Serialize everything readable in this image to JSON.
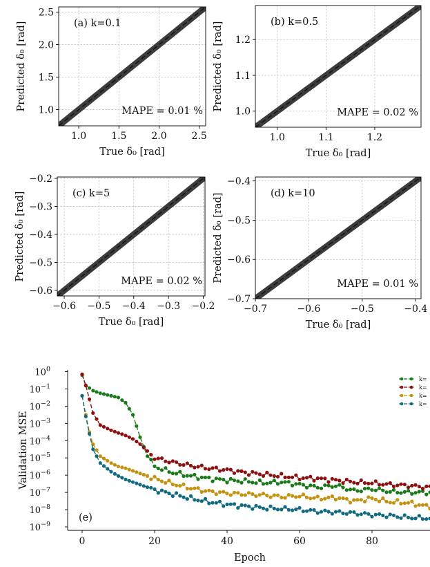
{
  "chart_data": [
    {
      "panel": "a",
      "type": "scatter",
      "label": "(a) k=0.1",
      "annotation": "MAPE = 0.01 %",
      "xlabel": "True δ₀ [rad]",
      "ylabel": "Predicted δ₀ [rad]",
      "xlim": [
        0.75,
        2.58
      ],
      "ylim": [
        0.75,
        2.58
      ],
      "xticks": [
        1.0,
        1.5,
        2.0,
        2.5
      ],
      "yticks": [
        1.0,
        1.5,
        2.0,
        2.5
      ],
      "xtick_labels": [
        "1.0",
        "1.5",
        "2.0",
        "2.5"
      ],
      "ytick_labels": [
        "1.0",
        "1.5",
        "2.0",
        "2.5"
      ],
      "grid": true,
      "series": [
        {
          "x": [
            0.75,
            2.58
          ],
          "y": [
            0.75,
            2.58
          ]
        }
      ]
    },
    {
      "panel": "b",
      "type": "scatter",
      "label": "(b) k=0.5",
      "annotation": "MAPE = 0.02 %",
      "xlabel": "True δ₀ [rad]",
      "ylabel": "Predicted δ₀ [rad]",
      "xlim": [
        0.955,
        1.295
      ],
      "ylim": [
        0.955,
        1.295
      ],
      "xticks": [
        1.0,
        1.1,
        1.2
      ],
      "yticks": [
        1.0,
        1.1,
        1.2
      ],
      "xtick_labels": [
        "1.0",
        "1.1",
        "1.2"
      ],
      "ytick_labels": [
        "1.0",
        "1.1",
        "1.2"
      ],
      "grid": true,
      "series": [
        {
          "x": [
            0.955,
            1.295
          ],
          "y": [
            0.955,
            1.295
          ]
        }
      ]
    },
    {
      "panel": "c",
      "type": "scatter",
      "label": "(c) k=5",
      "annotation": "MAPE = 0.02 %",
      "xlabel": "True δ₀ [rad]",
      "ylabel": "Predicted δ₀ [rad]",
      "xlim": [
        -0.62,
        -0.195
      ],
      "ylim": [
        -0.62,
        -0.195
      ],
      "xticks": [
        -0.6,
        -0.5,
        -0.4,
        -0.3,
        -0.2
      ],
      "yticks": [
        -0.6,
        -0.5,
        -0.4,
        -0.3,
        -0.2
      ],
      "xtick_labels": [
        "−0.6",
        "−0.5",
        "−0.4",
        "−0.3",
        "−0.2"
      ],
      "ytick_labels": [
        "−0.6",
        "−0.5",
        "−0.4",
        "−0.3",
        "−0.2"
      ],
      "grid": true,
      "series": [
        {
          "x": [
            -0.62,
            -0.195
          ],
          "y": [
            -0.62,
            -0.195
          ]
        }
      ]
    },
    {
      "panel": "d",
      "type": "scatter",
      "label": "(d) k=10",
      "annotation": "MAPE = 0.01 %",
      "xlabel": "True δ₀ [rad]",
      "ylabel": "Predicted δ₀ [rad]",
      "xlim": [
        -0.7,
        -0.39
      ],
      "ylim": [
        -0.7,
        -0.39
      ],
      "xticks": [
        -0.7,
        -0.6,
        -0.5,
        -0.4
      ],
      "yticks": [
        -0.7,
        -0.6,
        -0.5,
        -0.4
      ],
      "xtick_labels": [
        "−0.7",
        "−0.6",
        "−0.5",
        "−0.4"
      ],
      "ytick_labels": [
        "−0.7",
        "−0.6",
        "−0.5",
        "−0.4"
      ],
      "grid": true,
      "series": [
        {
          "x": [
            -0.7,
            -0.39
          ],
          "y": [
            -0.7,
            -0.39
          ]
        }
      ]
    },
    {
      "panel": "e",
      "type": "line",
      "label": "(e)",
      "xlabel": "Epoch",
      "ylabel": "Validation MSE",
      "xlim": [
        -4,
        96
      ],
      "ylim_log10": [
        -9.2,
        0.1
      ],
      "log_y": true,
      "xticks": [
        0,
        20,
        40,
        60,
        80
      ],
      "xtick_labels": [
        "0",
        "20",
        "40",
        "60",
        "80"
      ],
      "ytick_exponents": [
        0,
        -1,
        -2,
        -3,
        -4,
        -5,
        -6,
        -7,
        -8,
        -9
      ],
      "legend_position": "right",
      "legend_labels": [
        "k=",
        "k=",
        "k=",
        "k="
      ],
      "grid": false,
      "series": [
        {
          "name": "k=",
          "color": "#1a7a1a",
          "x": [
            0,
            1,
            2,
            3,
            5,
            8,
            10,
            12,
            14,
            16,
            18,
            20,
            25,
            30,
            35,
            40,
            45,
            50,
            55,
            60,
            65,
            70,
            75,
            80,
            85,
            90,
            95
          ],
          "log10_y": [
            -0.2,
            -0.8,
            -0.95,
            -1.1,
            -1.25,
            -1.4,
            -1.5,
            -1.8,
            -2.5,
            -3.8,
            -4.9,
            -5.5,
            -5.85,
            -6.05,
            -6.2,
            -6.3,
            -6.35,
            -6.45,
            -6.4,
            -6.55,
            -6.7,
            -6.6,
            -6.9,
            -6.8,
            -6.95,
            -7.0,
            -7.0
          ]
        },
        {
          "name": "k=",
          "color": "#8c1010",
          "x": [
            0,
            1,
            2,
            3,
            5,
            8,
            10,
            12,
            14,
            16,
            18,
            20,
            25,
            30,
            35,
            40,
            45,
            50,
            55,
            60,
            65,
            70,
            75,
            80,
            85,
            90,
            95
          ],
          "log10_y": [
            -0.15,
            -0.8,
            -1.6,
            -2.4,
            -3.1,
            -3.4,
            -3.55,
            -3.7,
            -3.9,
            -4.2,
            -4.6,
            -5.0,
            -5.25,
            -5.45,
            -5.6,
            -5.7,
            -5.85,
            -5.95,
            -6.05,
            -6.15,
            -6.2,
            -6.3,
            -6.4,
            -6.45,
            -6.55,
            -6.6,
            -6.7
          ]
        },
        {
          "name": "k=",
          "color": "#c29210",
          "x": [
            0,
            1,
            2,
            3,
            5,
            8,
            10,
            12,
            14,
            16,
            18,
            20,
            25,
            30,
            35,
            40,
            45,
            50,
            55,
            60,
            65,
            70,
            75,
            80,
            85,
            90,
            95
          ],
          "log10_y": [
            -1.4,
            -2.5,
            -3.5,
            -4.2,
            -4.9,
            -5.3,
            -5.5,
            -5.6,
            -5.75,
            -5.9,
            -6.05,
            -6.2,
            -6.5,
            -6.75,
            -6.95,
            -7.05,
            -7.1,
            -7.15,
            -7.25,
            -7.2,
            -7.35,
            -7.3,
            -7.5,
            -7.35,
            -7.55,
            -7.6,
            -7.8
          ]
        },
        {
          "name": "k=",
          "color": "#106b80",
          "x": [
            0,
            1,
            2,
            3,
            5,
            8,
            10,
            12,
            14,
            16,
            18,
            20,
            25,
            30,
            35,
            40,
            45,
            50,
            55,
            60,
            65,
            70,
            75,
            80,
            85,
            90,
            95
          ],
          "log10_y": [
            -1.4,
            -2.6,
            -3.6,
            -4.5,
            -5.3,
            -5.8,
            -6.05,
            -6.25,
            -6.4,
            -6.55,
            -6.7,
            -6.85,
            -7.1,
            -7.35,
            -7.55,
            -7.7,
            -7.8,
            -7.9,
            -7.95,
            -8.0,
            -8.1,
            -8.15,
            -8.2,
            -8.3,
            -8.35,
            -8.45,
            -8.5
          ]
        }
      ]
    }
  ]
}
